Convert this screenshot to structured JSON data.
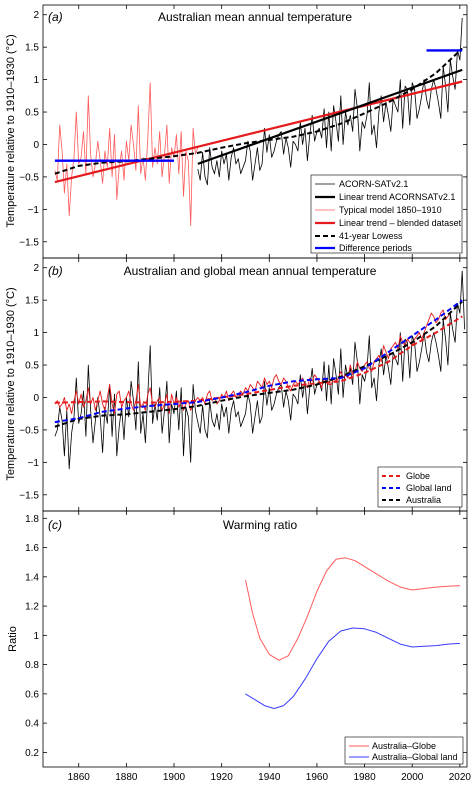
{
  "figure": {
    "x_ticks": [
      "1860",
      "1880",
      "1900",
      "1920",
      "1940",
      "1960",
      "1980",
      "2000",
      "2020"
    ]
  },
  "colors": {
    "black": "#000000",
    "red": "#e41a1c",
    "red_light": "#ff5a5a",
    "blue": "#0000ff",
    "blue_light": "#3b3bff"
  },
  "chart_data": [
    {
      "type": "line",
      "panel_label": "(a)",
      "title": "Australian mean annual temperature",
      "ylabel": "Temperature relative to 1910–1930 (°C)",
      "xlim": [
        1845,
        2023
      ],
      "ylim": [
        -1.75,
        2.15
      ],
      "yticks": [
        "−1.5",
        "−1",
        "−0.5",
        "0",
        "0.5",
        "1",
        "1.5",
        "2"
      ],
      "ytick_values": [
        -1.5,
        -1,
        -0.5,
        0,
        0.5,
        1,
        1.5,
        2
      ],
      "legend": [
        "ACORN-SATv2.1",
        "Linear trend ACORNSATv2.1",
        "Typical model 1850–1910",
        "Linear trend – blended dataset",
        "41-year Lowess",
        "Difference periods"
      ],
      "legend_position": "lower-right",
      "series": {
        "acorn_x": [
          1910,
          2021
        ],
        "acorn_annual": [
          -0.38,
          -0.55,
          -0.12,
          -0.5,
          -0.62,
          -0.05,
          -0.35,
          -0.45,
          -0.25,
          -0.5,
          -0.1,
          -0.3,
          -0.15,
          -0.55,
          -0.2,
          -0.05,
          -0.3,
          -0.22,
          -0.45,
          -0.35,
          -0.25,
          0.05,
          -0.1,
          -0.55,
          -0.3,
          -0.05,
          -0.4,
          -0.3,
          0.25,
          -0.12,
          0.15,
          -0.2,
          -0.1,
          0.05,
          0.15,
          0.2,
          -0.15,
          0.1,
          -0.05,
          -0.35,
          0.05,
          0.0,
          -0.1,
          0.35,
          0.0,
          0.25,
          -0.25,
          0.15,
          0.45,
          0.05,
          0.2,
          0.25,
          0.1,
          0.55,
          -0.05,
          0.5,
          -0.1,
          0.6,
          0.35,
          0.05,
          0.75,
          0.0,
          0.5,
          0.3,
          0.45,
          0.2,
          0.85,
          0.55,
          -0.1,
          0.35,
          0.25,
          0.45,
          0.95,
          0.15,
          0.3,
          -0.05,
          0.5,
          0.75,
          0.35,
          0.65,
          0.45,
          0.2,
          0.7,
          0.6,
          0.5,
          1.0,
          0.25,
          0.9,
          0.85,
          0.3,
          0.95,
          0.85,
          0.4,
          0.55,
          0.75,
          1.0,
          0.7,
          0.55,
          0.85,
          1.0,
          0.85,
          0.65,
          0.4,
          1.2,
          0.9,
          0.5,
          1.3,
          1.05,
          0.85,
          1.45,
          1.3,
          1.95
        ],
        "acorn_trend": [
          [
            1910,
            -0.3
          ],
          [
            2021,
            1.15
          ]
        ],
        "typical_model_x": [
          1850,
          1910
        ],
        "typical_model": [
          -0.4,
          -0.55,
          0.3,
          -0.1,
          -0.75,
          -0.3,
          -1.1,
          -0.5,
          -0.2,
          0.5,
          -0.3,
          -0.2,
          0.2,
          -0.45,
          0.75,
          -0.15,
          -0.5,
          -0.3,
          0.05,
          -0.25,
          -0.6,
          -0.1,
          -0.35,
          0.25,
          -0.5,
          0.15,
          -0.85,
          -0.35,
          -0.1,
          -0.55,
          0.05,
          -0.25,
          0.3,
          0.0,
          -0.4,
          0.6,
          -0.45,
          -0.2,
          -0.55,
          0.1,
          0.95,
          -0.35,
          -0.05,
          -0.3,
          0.2,
          -0.5,
          -0.15,
          0.3,
          -0.6,
          -0.05,
          -0.2,
          0.15,
          -0.45,
          0.2,
          -0.8,
          -0.1,
          -0.25,
          -1.25,
          0.25,
          -0.15,
          -0.05
        ],
        "blended_trend": [
          [
            1850,
            -0.58
          ],
          [
            2021,
            0.97
          ]
        ],
        "lowess": [
          [
            1850,
            -0.45
          ],
          [
            1860,
            -0.33
          ],
          [
            1870,
            -0.28
          ],
          [
            1880,
            -0.26
          ],
          [
            1890,
            -0.22
          ],
          [
            1900,
            -0.18
          ],
          [
            1910,
            -0.13
          ],
          [
            1920,
            -0.05
          ],
          [
            1930,
            0.02
          ],
          [
            1940,
            0.07
          ],
          [
            1950,
            0.12
          ],
          [
            1960,
            0.2
          ],
          [
            1970,
            0.32
          ],
          [
            1980,
            0.48
          ],
          [
            1990,
            0.65
          ],
          [
            2000,
            0.85
          ],
          [
            2010,
            1.1
          ],
          [
            2021,
            1.48
          ]
        ],
        "difference_periods": [
          [
            [
              1850,
              -0.25
            ],
            [
              1900,
              -0.25
            ]
          ],
          [
            [
              2006,
              1.45
            ],
            [
              2021,
              1.45
            ]
          ]
        ]
      }
    },
    {
      "type": "line",
      "panel_label": "(b)",
      "title": "Australian and global mean annual temperature",
      "ylabel": "Temperature relative to 1910–1930 (°C)",
      "xlim": [
        1845,
        2023
      ],
      "ylim": [
        -1.75,
        2.15
      ],
      "yticks": [
        "−1.5",
        "−1",
        "−0.5",
        "0",
        "0.5",
        "1",
        "1.5",
        "2"
      ],
      "ytick_values": [
        -1.5,
        -1,
        -0.5,
        0,
        0.5,
        1,
        1.5,
        2
      ],
      "legend": [
        "Globe",
        "Global land",
        "Australia"
      ],
      "legend_position": "lower-right",
      "series": {
        "x_start": 1850,
        "australia_annual": [
          -0.6,
          -0.5,
          -0.15,
          -0.35,
          -0.9,
          -0.2,
          -1.1,
          -0.55,
          -0.3,
          0.3,
          -0.4,
          -0.25,
          0.1,
          -0.6,
          0.5,
          -0.2,
          -0.7,
          -0.35,
          0.0,
          -0.3,
          -0.85,
          -0.15,
          -0.4,
          0.2,
          -0.6,
          0.05,
          -0.9,
          -0.45,
          -0.15,
          -0.65,
          0.0,
          -0.3,
          0.25,
          -0.05,
          -0.5,
          0.55,
          -0.55,
          -0.25,
          -0.7,
          0.05,
          0.8,
          -0.4,
          -0.1,
          -0.35,
          0.15,
          -0.55,
          -0.2,
          0.25,
          -0.7,
          -0.1,
          -0.25,
          0.1,
          -0.5,
          0.15,
          -0.9,
          -0.15,
          -0.3,
          -1.0,
          0.2,
          -0.2,
          -0.38,
          -0.55,
          -0.12,
          -0.5,
          -0.62,
          -0.05,
          -0.35,
          -0.45,
          -0.25,
          -0.5,
          -0.1,
          -0.3,
          -0.15,
          -0.55,
          -0.2,
          -0.05,
          -0.3,
          -0.22,
          -0.45,
          -0.35,
          -0.25,
          0.05,
          -0.1,
          -0.55,
          -0.3,
          -0.05,
          -0.4,
          -0.3,
          0.25,
          -0.12,
          0.15,
          -0.2,
          -0.1,
          0.05,
          0.15,
          0.2,
          -0.15,
          0.1,
          -0.05,
          -0.35,
          0.05,
          0.0,
          -0.1,
          0.35,
          0.0,
          0.25,
          -0.25,
          0.15,
          0.45,
          0.05,
          0.2,
          0.25,
          0.1,
          0.55,
          -0.05,
          0.5,
          -0.1,
          0.6,
          0.35,
          0.05,
          0.75,
          0.0,
          0.5,
          0.3,
          0.45,
          0.2,
          0.85,
          0.55,
          -0.1,
          0.35,
          0.25,
          0.45,
          0.95,
          0.15,
          0.3,
          -0.05,
          0.5,
          0.75,
          0.35,
          0.65,
          0.45,
          0.2,
          0.7,
          0.6,
          0.5,
          1.0,
          0.25,
          0.9,
          0.85,
          0.3,
          0.95,
          0.85,
          0.4,
          0.55,
          0.75,
          1.0,
          0.7,
          0.55,
          0.85,
          1.0,
          0.85,
          0.65,
          0.4,
          1.2,
          0.9,
          0.5,
          1.3,
          1.05,
          0.85,
          1.45,
          1.3,
          1.95,
          1.05
        ],
        "globe_annual": [
          -0.1,
          -0.05,
          -0.15,
          -0.1,
          0.0,
          -0.2,
          -0.1,
          -0.25,
          -0.05,
          0.1,
          -0.1,
          0.05,
          -0.15,
          -0.05,
          0.15,
          -0.1,
          0.0,
          -0.2,
          -0.05,
          0.1,
          -0.1,
          -0.2,
          0.0,
          0.2,
          -0.1,
          -0.25,
          0.05,
          0.1,
          -0.15,
          -0.05,
          0.0,
          0.1,
          -0.1,
          -0.2,
          -0.05,
          0.2,
          -0.15,
          -0.1,
          -0.2,
          0.05,
          0.15,
          -0.1,
          -0.15,
          -0.05,
          0.0,
          -0.2,
          -0.1,
          0.05,
          -0.25,
          0.05,
          -0.1,
          0.0,
          -0.15,
          -0.05,
          -0.2,
          -0.1,
          -0.05,
          -0.2,
          -0.1,
          -0.05,
          0.0,
          -0.05,
          0.0,
          -0.1,
          0.05,
          0.1,
          -0.05,
          0.0,
          -0.1,
          -0.05,
          0.05,
          0.0,
          0.1,
          -0.05,
          0.05,
          0.1,
          0.0,
          0.05,
          0.1,
          0.05,
          0.15,
          0.1,
          0.2,
          0.15,
          0.1,
          0.25,
          0.2,
          0.15,
          0.3,
          0.2,
          0.25,
          0.15,
          0.3,
          0.35,
          0.25,
          0.2,
          0.3,
          0.25,
          0.15,
          0.1,
          0.2,
          0.25,
          0.2,
          0.25,
          0.3,
          0.2,
          0.15,
          0.3,
          0.25,
          0.35,
          0.3,
          0.25,
          0.15,
          0.3,
          0.25,
          0.2,
          0.2,
          0.3,
          0.25,
          0.3,
          0.4,
          0.3,
          0.35,
          0.3,
          0.5,
          0.35,
          0.4,
          0.55,
          0.45,
          0.4,
          0.5,
          0.55,
          0.45,
          0.4,
          0.55,
          0.6,
          0.65,
          0.55,
          0.8,
          0.7,
          0.6,
          0.75,
          0.8,
          0.85,
          0.75,
          0.95,
          0.85,
          0.8,
          0.9,
          0.85,
          0.8,
          0.9,
          0.95,
          1.0,
          0.9,
          1.0,
          1.1,
          1.2,
          1.3,
          1.25,
          1.15,
          1.2,
          1.3,
          1.35,
          1.2,
          1.25,
          1.3
        ],
        "globe_lowess": [
          [
            1850,
            -0.08
          ],
          [
            1870,
            -0.06
          ],
          [
            1890,
            -0.08
          ],
          [
            1910,
            -0.05
          ],
          [
            1930,
            0.05
          ],
          [
            1950,
            0.18
          ],
          [
            1960,
            0.22
          ],
          [
            1970,
            0.25
          ],
          [
            1980,
            0.38
          ],
          [
            1990,
            0.55
          ],
          [
            2000,
            0.8
          ],
          [
            2010,
            1.0
          ],
          [
            2021,
            1.25
          ]
        ],
        "land_lowess": [
          [
            1850,
            -0.38
          ],
          [
            1860,
            -0.32
          ],
          [
            1870,
            -0.22
          ],
          [
            1880,
            -0.17
          ],
          [
            1890,
            -0.13
          ],
          [
            1900,
            -0.1
          ],
          [
            1910,
            -0.07
          ],
          [
            1920,
            0.0
          ],
          [
            1930,
            0.08
          ],
          [
            1940,
            0.18
          ],
          [
            1950,
            0.25
          ],
          [
            1960,
            0.28
          ],
          [
            1970,
            0.3
          ],
          [
            1980,
            0.45
          ],
          [
            1990,
            0.7
          ],
          [
            2000,
            0.95
          ],
          [
            2010,
            1.2
          ],
          [
            2021,
            1.5
          ]
        ],
        "australia_lowess": [
          [
            1850,
            -0.45
          ],
          [
            1860,
            -0.33
          ],
          [
            1870,
            -0.28
          ],
          [
            1880,
            -0.26
          ],
          [
            1890,
            -0.22
          ],
          [
            1900,
            -0.18
          ],
          [
            1910,
            -0.13
          ],
          [
            1920,
            -0.05
          ],
          [
            1930,
            0.02
          ],
          [
            1940,
            0.07
          ],
          [
            1950,
            0.12
          ],
          [
            1960,
            0.2
          ],
          [
            1970,
            0.32
          ],
          [
            1980,
            0.48
          ],
          [
            1990,
            0.65
          ],
          [
            2000,
            0.85
          ],
          [
            2010,
            1.1
          ],
          [
            2021,
            1.48
          ]
        ]
      }
    },
    {
      "type": "line",
      "panel_label": "(c)",
      "title": "Warming ratio",
      "ylabel": "Ratio",
      "xlim": [
        1845,
        2023
      ],
      "ylim": [
        0.1,
        1.85
      ],
      "yticks": [
        "0.2",
        "0.4",
        "0.6",
        "0.8",
        "1",
        "1.2",
        "1.4",
        "1.6",
        "1.8"
      ],
      "ytick_values": [
        0.2,
        0.4,
        0.6,
        0.8,
        1,
        1.2,
        1.4,
        1.6,
        1.8
      ],
      "legend": [
        "Australia–Globe",
        "Australia–Global land"
      ],
      "legend_position": "lower-right",
      "series": {
        "australia_globe": [
          [
            1930,
            1.38
          ],
          [
            1933,
            1.15
          ],
          [
            1936,
            0.98
          ],
          [
            1940,
            0.87
          ],
          [
            1944,
            0.83
          ],
          [
            1948,
            0.86
          ],
          [
            1952,
            0.98
          ],
          [
            1956,
            1.13
          ],
          [
            1960,
            1.3
          ],
          [
            1964,
            1.44
          ],
          [
            1968,
            1.52
          ],
          [
            1972,
            1.53
          ],
          [
            1976,
            1.51
          ],
          [
            1980,
            1.47
          ],
          [
            1985,
            1.42
          ],
          [
            1990,
            1.37
          ],
          [
            1995,
            1.33
          ],
          [
            2000,
            1.31
          ],
          [
            2005,
            1.32
          ],
          [
            2010,
            1.33
          ],
          [
            2015,
            1.335
          ],
          [
            2020,
            1.34
          ]
        ],
        "australia_land": [
          [
            1930,
            0.6
          ],
          [
            1934,
            0.56
          ],
          [
            1938,
            0.52
          ],
          [
            1942,
            0.5
          ],
          [
            1946,
            0.52
          ],
          [
            1950,
            0.58
          ],
          [
            1955,
            0.7
          ],
          [
            1960,
            0.84
          ],
          [
            1965,
            0.96
          ],
          [
            1970,
            1.03
          ],
          [
            1975,
            1.05
          ],
          [
            1980,
            1.045
          ],
          [
            1985,
            1.02
          ],
          [
            1990,
            0.98
          ],
          [
            1995,
            0.94
          ],
          [
            2000,
            0.92
          ],
          [
            2005,
            0.925
          ],
          [
            2010,
            0.93
          ],
          [
            2015,
            0.94
          ],
          [
            2020,
            0.945
          ]
        ]
      }
    }
  ]
}
